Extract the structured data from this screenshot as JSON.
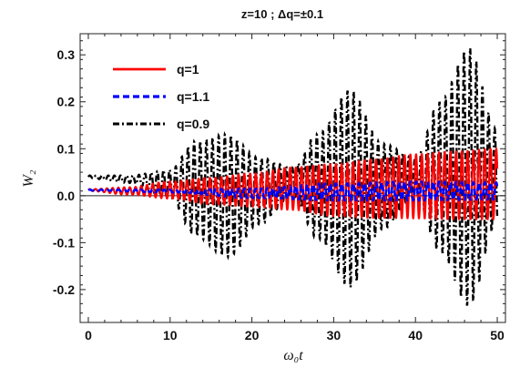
{
  "chart_data": {
    "type": "line",
    "title": "z=10 ;  Δq=±0.1",
    "xlabel": "ω₀t",
    "ylabel": "W₂",
    "xlim": [
      -1,
      51
    ],
    "ylim": [
      -0.27,
      0.345
    ],
    "x_ticks": [
      0,
      10,
      20,
      30,
      40,
      50
    ],
    "x_tick_labels": [
      "0",
      "10",
      "20",
      "30",
      "40",
      "50"
    ],
    "y_ticks": [
      -0.2,
      -0.1,
      0.0,
      0.1,
      0.2,
      0.3
    ],
    "y_tick_labels": [
      "-0.2",
      "-0.1",
      "0.0",
      "0.1",
      "0.2",
      "0.3"
    ],
    "legend_position": "top-left",
    "grid": false,
    "x_range": [
      0,
      50
    ],
    "series": [
      {
        "name": "q=1",
        "color": "#ff0000",
        "style": "solid",
        "period": 0.7,
        "envelope_points": [
          {
            "x": 0,
            "center": 0.012,
            "amplitude": 0.002
          },
          {
            "x": 5,
            "center": 0.01,
            "amplitude": 0.008
          },
          {
            "x": 10,
            "center": 0.012,
            "amplitude": 0.018
          },
          {
            "x": 15,
            "center": 0.01,
            "amplitude": 0.028
          },
          {
            "x": 20,
            "center": 0.012,
            "amplitude": 0.035
          },
          {
            "x": 25,
            "center": 0.015,
            "amplitude": 0.045
          },
          {
            "x": 30,
            "center": 0.012,
            "amplitude": 0.055
          },
          {
            "x": 35,
            "center": 0.015,
            "amplitude": 0.062
          },
          {
            "x": 40,
            "center": 0.02,
            "amplitude": 0.068
          },
          {
            "x": 45,
            "center": 0.022,
            "amplitude": 0.072
          },
          {
            "x": 50,
            "center": 0.025,
            "amplitude": 0.075
          }
        ]
      },
      {
        "name": "q=1.1",
        "color": "#0000ff",
        "style": "dashed",
        "period": 0.7,
        "envelope_points": [
          {
            "x": 0,
            "center": 0.012,
            "amplitude": 0.001
          },
          {
            "x": 10,
            "center": 0.01,
            "amplitude": 0.003
          },
          {
            "x": 20,
            "center": 0.005,
            "amplitude": 0.01
          },
          {
            "x": 30,
            "center": 0.008,
            "amplitude": 0.018
          },
          {
            "x": 40,
            "center": 0.01,
            "amplitude": 0.02
          },
          {
            "x": 50,
            "center": 0.01,
            "amplitude": 0.018
          }
        ]
      },
      {
        "name": "q=0.9",
        "color": "#000000",
        "style": "dashdot",
        "period": 0.75,
        "envelope_points": [
          {
            "x": 0,
            "center": 0.04,
            "amplitude": 0.003
          },
          {
            "x": 5,
            "center": 0.035,
            "amplitude": 0.008
          },
          {
            "x": 10,
            "center": 0.025,
            "amplitude": 0.03
          },
          {
            "x": 13,
            "center": 0.015,
            "amplitude": 0.1
          },
          {
            "x": 17,
            "center": 0.0,
            "amplitude": 0.13
          },
          {
            "x": 21,
            "center": 0.01,
            "amplitude": 0.07
          },
          {
            "x": 25,
            "center": 0.03,
            "amplitude": 0.03
          },
          {
            "x": 28,
            "center": 0.02,
            "amplitude": 0.11
          },
          {
            "x": 32,
            "center": 0.015,
            "amplitude": 0.21
          },
          {
            "x": 36,
            "center": 0.02,
            "amplitude": 0.09
          },
          {
            "x": 40,
            "center": 0.04,
            "amplitude": 0.04
          },
          {
            "x": 43,
            "center": 0.04,
            "amplitude": 0.16
          },
          {
            "x": 46.5,
            "center": 0.04,
            "amplitude": 0.275
          },
          {
            "x": 50,
            "center": 0.04,
            "amplitude": 0.1
          }
        ]
      }
    ]
  }
}
